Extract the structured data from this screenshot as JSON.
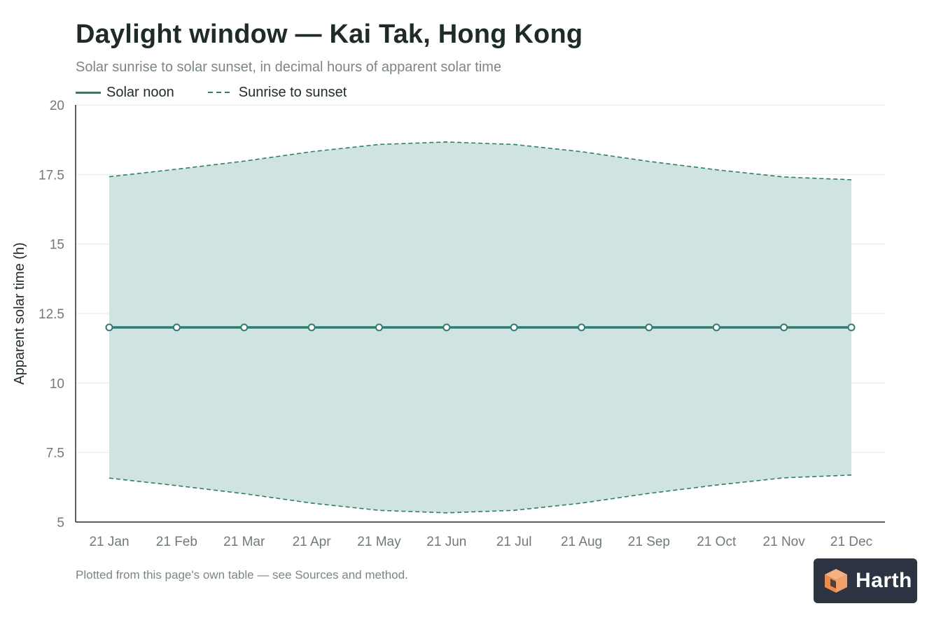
{
  "title": "Daylight window — Kai Tak, Hong Kong",
  "subtitle": "Solar sunrise to solar sunset, in decimal hours of apparent solar time",
  "legend": {
    "noon_label": "Solar noon",
    "window_label": "Sunrise to sunset"
  },
  "footnote": "Plotted from this page's own table — see Sources and method.",
  "logo": {
    "text": "Harth",
    "icon": "harth-cube-logo"
  },
  "colors": {
    "accent": "#2f7c73",
    "band_fill": "#cfe4e0",
    "axis": "#2b2b2b",
    "grid": "#e6e9e8",
    "tick_text": "#707a78"
  },
  "chart_data": {
    "type": "area",
    "categories": [
      "21 Jan",
      "21 Feb",
      "21 Mar",
      "21 Apr",
      "21 May",
      "21 Jun",
      "21 Jul",
      "21 Aug",
      "21 Sep",
      "21 Oct",
      "21 Nov",
      "21 Dec"
    ],
    "series": [
      {
        "name": "Solar noon",
        "style": "solid-line-with-markers",
        "values": [
          12,
          12,
          12,
          12,
          12,
          12,
          12,
          12,
          12,
          12,
          12,
          12
        ]
      },
      {
        "name": "Sunrise to sunset",
        "style": "dashed-band",
        "sunrise": [
          6.58,
          6.31,
          6.02,
          5.68,
          5.42,
          5.33,
          5.42,
          5.68,
          6.03,
          6.33,
          6.59,
          6.69
        ],
        "sunset": [
          17.42,
          17.69,
          17.98,
          18.32,
          18.58,
          18.67,
          18.58,
          18.32,
          17.97,
          17.67,
          17.41,
          17.31
        ]
      }
    ],
    "ylabel": "Apparent solar time (h)",
    "xlabel": "",
    "ylim": [
      5,
      20
    ],
    "yticks": [
      5,
      7.5,
      10,
      12.5,
      15,
      17.5,
      20
    ],
    "ytick_labels": [
      "5",
      "7.5",
      "10",
      "12.5",
      "15",
      "17.5",
      "20"
    ],
    "grid": "horizontal",
    "legend_position": "top-left"
  }
}
